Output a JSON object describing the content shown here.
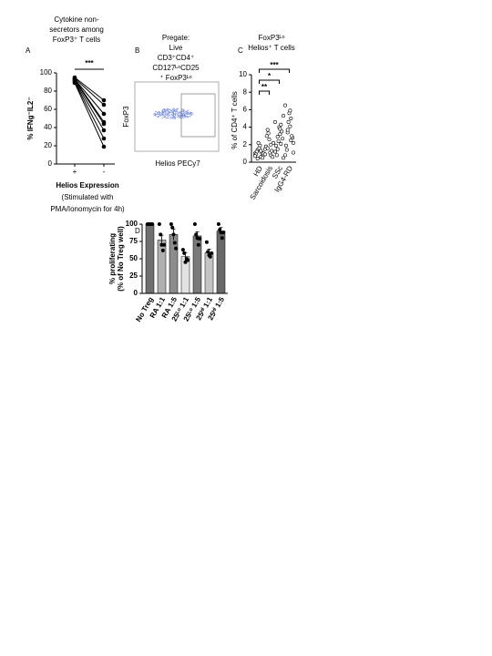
{
  "chart_data": [
    {
      "type": "paired",
      "panel": "A",
      "title": [
        "Cytokine non-",
        "secretors among",
        "FoxP3⁺ T cells"
      ],
      "ylabel": "% IFNg⁻IL2⁻",
      "xlabel": [
        "Helios Expression",
        "(Stimulated with",
        "PMA/Ionomycin for 4h)"
      ],
      "categories": [
        "+",
        "-"
      ],
      "series": [
        {
          "values": [
            95,
            70
          ]
        },
        {
          "values": [
            94,
            65
          ]
        },
        {
          "values": [
            93,
            55
          ]
        },
        {
          "values": [
            93,
            46
          ]
        },
        {
          "values": [
            92,
            44
          ]
        },
        {
          "values": [
            91,
            37
          ]
        },
        {
          "values": [
            90,
            28
          ]
        },
        {
          "values": [
            89,
            19
          ]
        }
      ],
      "ylim": [
        0,
        100
      ],
      "yticks": [
        0,
        20,
        40,
        60,
        80,
        100
      ],
      "annotation": "***",
      "color": "#000000"
    },
    {
      "type": "flow",
      "panel": "B",
      "title": [
        "Pregate:",
        "Live",
        "CD3⁺CD4⁺",
        "CD127ᴸᵒCD25",
        "⁺ FoxP3ᴸᵒ"
      ],
      "xlabel": "Helios PECy7",
      "ylabel": "FoxP3"
    },
    {
      "type": "strip",
      "panel": "C",
      "title": [
        "FoxP3ᴸᵒ",
        "Helios⁺ T cells"
      ],
      "ylabel": "% of CD4⁺ T cells",
      "categories": [
        "HD",
        "Sarcoidosis",
        "SSc",
        "IgG4-RD"
      ],
      "values": [
        [
          1.0,
          0.6,
          1.4,
          0.8,
          1.9,
          1.2,
          0.5,
          1.6,
          0.9,
          1.1,
          2.2,
          0.7,
          1.3,
          0.4,
          1.0
        ],
        [
          1.5,
          0.8,
          3.7,
          2.2,
          1.1,
          3.0,
          0.6,
          2.6,
          1.8,
          1.3,
          3.3,
          0.9,
          2.0,
          1.6
        ],
        [
          4.6,
          2.1,
          1.5,
          5.3,
          3.2,
          0.8,
          2.7,
          4.0,
          1.9,
          3.5,
          2.4,
          1.2,
          4.3,
          2.9,
          0.5,
          3.8
        ],
        [
          6.5,
          5.0,
          3.4,
          2.2,
          4.1,
          1.4,
          2.8,
          5.6,
          1.9,
          3.0,
          4.6,
          0.8,
          2.5,
          3.7,
          1.1,
          5.9
        ]
      ],
      "ylim": [
        0,
        10
      ],
      "yticks": [
        0,
        2,
        4,
        6,
        8,
        10
      ],
      "comparisons": [
        {
          "label": "**",
          "pair": [
            "HD",
            "Sarcoidosis"
          ]
        },
        {
          "label": "*",
          "pair": [
            "HD",
            "SSc"
          ]
        },
        {
          "label": "***",
          "pair": [
            "HD",
            "IgG4-RD"
          ]
        }
      ]
    },
    {
      "type": "bar",
      "panel": "D",
      "ylabel": [
        "% proliferating",
        "(% of No Treg well)"
      ],
      "categories": [
        "No Treg",
        "RA 1:1",
        "RA 1:5",
        "25ᴸᵒ 1:1",
        "25ᴸᵒ 1:5",
        "25ᴴⁱ 1:1",
        "25ᴴⁱ 1:5"
      ],
      "values": [
        100,
        77,
        85,
        53,
        83,
        59,
        90
      ],
      "errors": [
        0,
        7,
        8,
        6,
        6,
        5,
        5
      ],
      "points": [
        [
          100,
          100,
          100,
          100,
          100
        ],
        [
          100,
          85,
          70,
          62,
          70
        ],
        [
          100,
          95,
          85,
          73,
          65
        ],
        [
          63,
          58,
          45,
          50,
          48
        ],
        [
          100,
          85,
          80,
          70,
          79
        ],
        [
          74,
          60,
          55,
          53,
          58
        ],
        [
          100,
          92,
          88,
          80,
          88
        ]
      ],
      "colors": [
        "#707070",
        "#b0b0b0",
        "#8c8c8c",
        "#e2e2e2",
        "#7a7a7a",
        "#c4c4c4",
        "#686868"
      ],
      "ylim": [
        0,
        100
      ],
      "yticks": [
        0,
        25,
        50,
        75,
        100
      ]
    }
  ]
}
